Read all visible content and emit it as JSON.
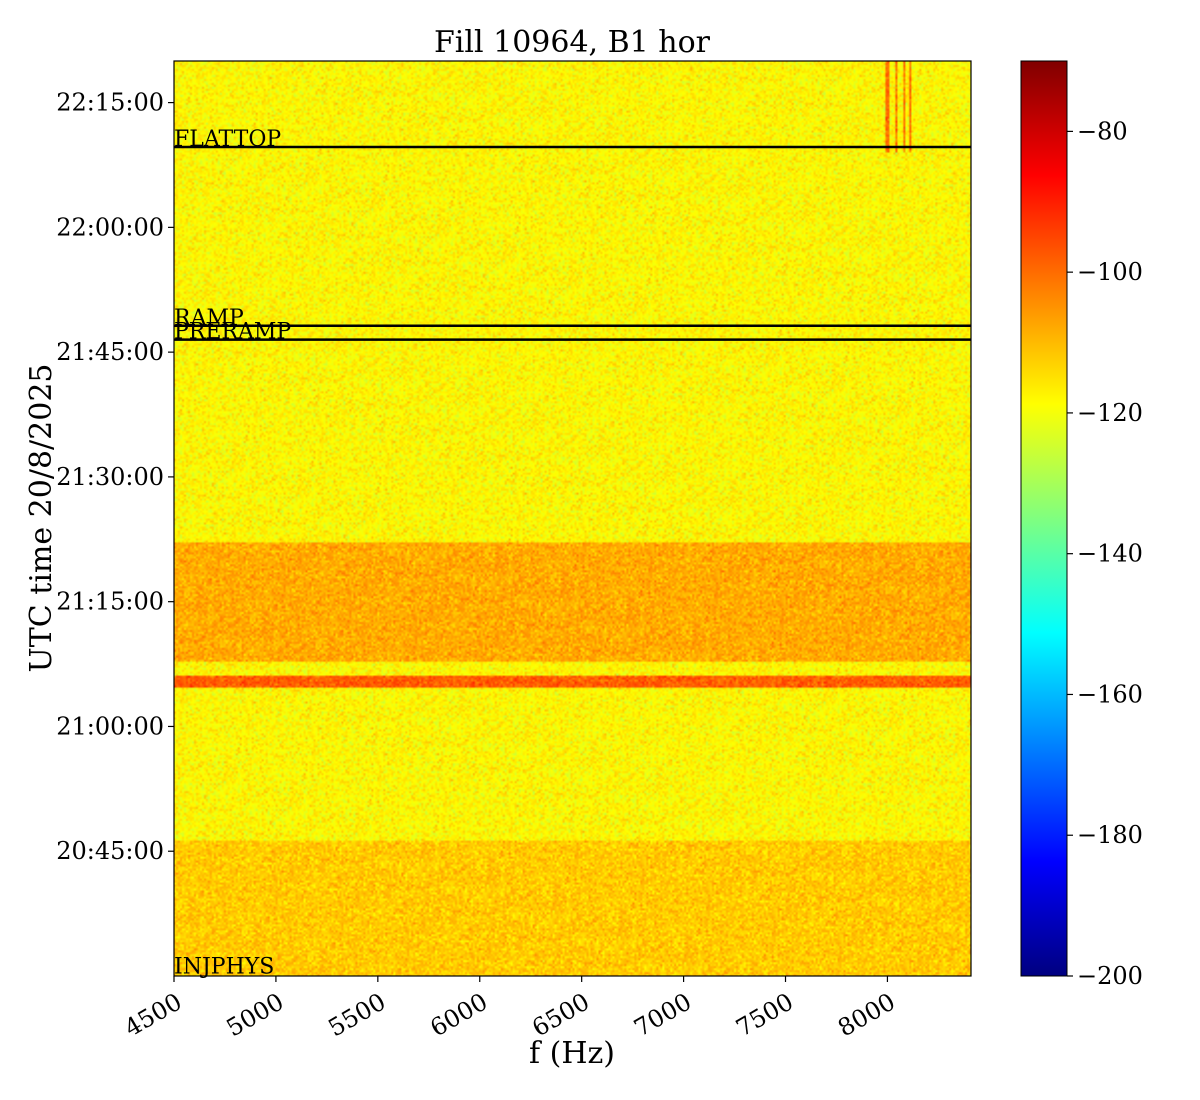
{
  "chart_data": {
    "type": "heatmap",
    "title": "Fill 10964, B1 hor",
    "xlabel": "f (Hz)",
    "ylabel": "UTC time 20/8/2025",
    "xlim": [
      4500,
      8410
    ],
    "ylim": [
      "20:30:00",
      "22:20:00"
    ],
    "x_ticks": [
      "4500",
      "5000",
      "5500",
      "6000",
      "6500",
      "7000",
      "7500",
      "8000"
    ],
    "y_ticks": [
      "20:45:00",
      "21:00:00",
      "21:15:00",
      "21:30:00",
      "21:45:00",
      "22:00:00",
      "22:15:00"
    ],
    "colorbar": {
      "colormap": "jet",
      "range": [
        -200,
        -70
      ],
      "ticks": [
        "−80",
        "−100",
        "−120",
        "−140",
        "−160",
        "−180",
        "−200"
      ]
    },
    "events": [
      {
        "name": "FLATTOP",
        "time": "22:09:40"
      },
      {
        "name": "RAMP",
        "time": "21:48:10"
      },
      {
        "name": "PRERAMP",
        "time": "21:46:30"
      },
      {
        "name": "INJPHYS",
        "time": "20:30:10"
      }
    ],
    "background_level_db": -118,
    "features": [
      {
        "description": "elevated band",
        "time_start": "21:07:50",
        "time_end": "21:22:10",
        "level_db": -108
      },
      {
        "description": "strong narrow band",
        "time_start": "21:04:40",
        "time_end": "21:06:00",
        "level_db": -98
      },
      {
        "description": "slightly elevated band",
        "time_start": "20:30:00",
        "time_end": "20:46:10",
        "level_db": -112
      },
      {
        "description": "vertical lines near 8000-8100 Hz",
        "freq_hz": [
          8000,
          8040,
          8080,
          8110
        ],
        "time_start": "22:09:00",
        "time_end": "22:20:00",
        "level_db": -100
      }
    ]
  }
}
